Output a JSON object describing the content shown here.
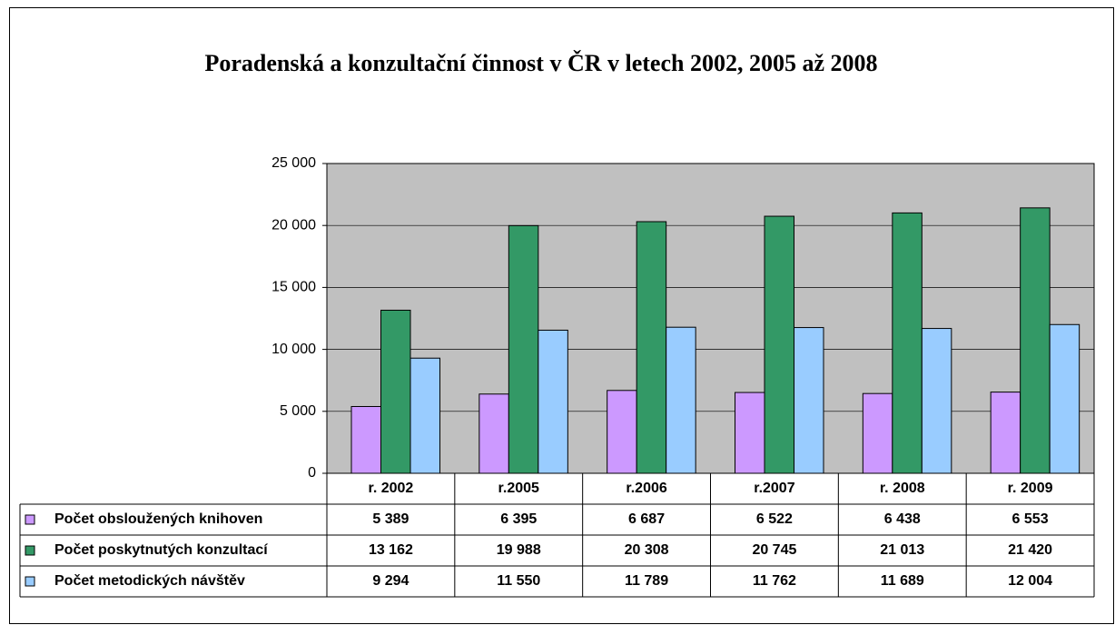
{
  "chart_data": {
    "type": "bar",
    "title": "Poradenská a konzultační činnost v ČR v letech 2002, 2005 až 2008",
    "categories": [
      "r. 2002",
      "r.2005",
      "r.2006",
      "r.2007",
      "r. 2008",
      "r. 2009"
    ],
    "series": [
      {
        "name": "Počet obsloužených knihoven",
        "color": "#cc99ff",
        "values": [
          5389,
          6395,
          6687,
          6522,
          6438,
          6553
        ],
        "value_labels": [
          "5 389",
          "6 395",
          "6 687",
          "6 522",
          "6 438",
          "6 553"
        ]
      },
      {
        "name": "Počet poskytnutých konzultací",
        "color": "#339966",
        "values": [
          13162,
          19988,
          20308,
          20745,
          21013,
          21420
        ],
        "value_labels": [
          "13 162",
          "19 988",
          "20 308",
          "20 745",
          "21 013",
          "21 420"
        ]
      },
      {
        "name": "Počet metodických návštěv",
        "color": "#99ccff",
        "values": [
          9294,
          11550,
          11789,
          11762,
          11689,
          12004
        ],
        "value_labels": [
          "9 294",
          "11 550",
          "11 789",
          "11 762",
          "11 689",
          "12 004"
        ]
      }
    ],
    "ylim": [
      0,
      25000
    ],
    "yticks": [
      {
        "value": 0,
        "label": "0"
      },
      {
        "value": 5000,
        "label": "5 000"
      },
      {
        "value": 10000,
        "label": "10 000"
      },
      {
        "value": 15000,
        "label": "15 000"
      },
      {
        "value": 20000,
        "label": "20 000"
      },
      {
        "value": 25000,
        "label": "25 000"
      }
    ],
    "grid": true,
    "plot_background": "#c0c0c0"
  }
}
